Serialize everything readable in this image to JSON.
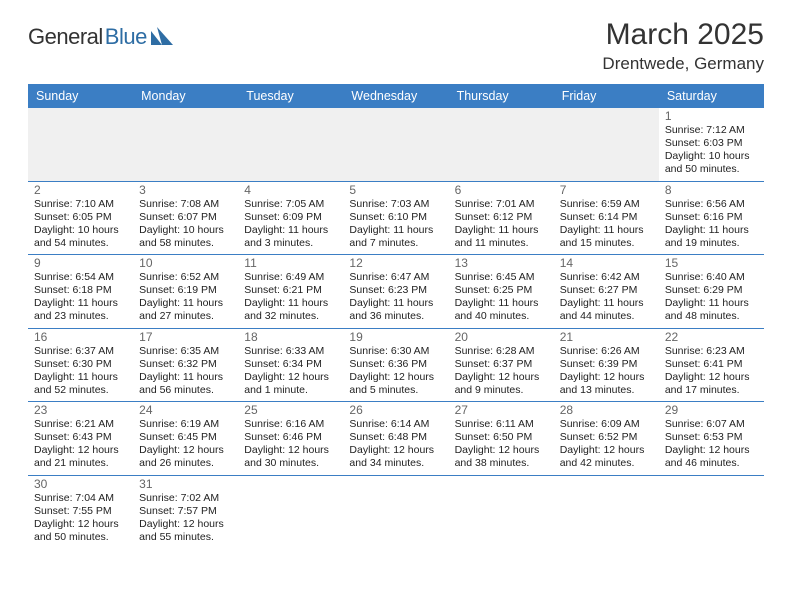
{
  "logo": {
    "part1": "General",
    "part2": "Blue"
  },
  "title": {
    "month": "March 2025",
    "location": "Drentwede, Germany"
  },
  "style": {
    "header_bg": "#3b7ec4",
    "header_fg": "#ffffff",
    "row_divider": "#3b7ec4",
    "light_row_bg": "#f0f0f0",
    "daynum_color": "#666666",
    "text_color": "#222222",
    "logo_blue": "#2e6da4",
    "font_family": "Arial",
    "title_fontsize": 30,
    "location_fontsize": 17,
    "header_fontsize": 12.5,
    "cell_fontsize": 10.5
  },
  "weekdays": [
    "Sunday",
    "Monday",
    "Tuesday",
    "Wednesday",
    "Thursday",
    "Friday",
    "Saturday"
  ],
  "weeks": [
    [
      null,
      null,
      null,
      null,
      null,
      null,
      {
        "d": "1",
        "sunrise": "Sunrise: 7:12 AM",
        "sunset": "Sunset: 6:03 PM",
        "daylight": "Daylight: 10 hours and 50 minutes."
      }
    ],
    [
      {
        "d": "2",
        "sunrise": "Sunrise: 7:10 AM",
        "sunset": "Sunset: 6:05 PM",
        "daylight": "Daylight: 10 hours and 54 minutes."
      },
      {
        "d": "3",
        "sunrise": "Sunrise: 7:08 AM",
        "sunset": "Sunset: 6:07 PM",
        "daylight": "Daylight: 10 hours and 58 minutes."
      },
      {
        "d": "4",
        "sunrise": "Sunrise: 7:05 AM",
        "sunset": "Sunset: 6:09 PM",
        "daylight": "Daylight: 11 hours and 3 minutes."
      },
      {
        "d": "5",
        "sunrise": "Sunrise: 7:03 AM",
        "sunset": "Sunset: 6:10 PM",
        "daylight": "Daylight: 11 hours and 7 minutes."
      },
      {
        "d": "6",
        "sunrise": "Sunrise: 7:01 AM",
        "sunset": "Sunset: 6:12 PM",
        "daylight": "Daylight: 11 hours and 11 minutes."
      },
      {
        "d": "7",
        "sunrise": "Sunrise: 6:59 AM",
        "sunset": "Sunset: 6:14 PM",
        "daylight": "Daylight: 11 hours and 15 minutes."
      },
      {
        "d": "8",
        "sunrise": "Sunrise: 6:56 AM",
        "sunset": "Sunset: 6:16 PM",
        "daylight": "Daylight: 11 hours and 19 minutes."
      }
    ],
    [
      {
        "d": "9",
        "sunrise": "Sunrise: 6:54 AM",
        "sunset": "Sunset: 6:18 PM",
        "daylight": "Daylight: 11 hours and 23 minutes."
      },
      {
        "d": "10",
        "sunrise": "Sunrise: 6:52 AM",
        "sunset": "Sunset: 6:19 PM",
        "daylight": "Daylight: 11 hours and 27 minutes."
      },
      {
        "d": "11",
        "sunrise": "Sunrise: 6:49 AM",
        "sunset": "Sunset: 6:21 PM",
        "daylight": "Daylight: 11 hours and 32 minutes."
      },
      {
        "d": "12",
        "sunrise": "Sunrise: 6:47 AM",
        "sunset": "Sunset: 6:23 PM",
        "daylight": "Daylight: 11 hours and 36 minutes."
      },
      {
        "d": "13",
        "sunrise": "Sunrise: 6:45 AM",
        "sunset": "Sunset: 6:25 PM",
        "daylight": "Daylight: 11 hours and 40 minutes."
      },
      {
        "d": "14",
        "sunrise": "Sunrise: 6:42 AM",
        "sunset": "Sunset: 6:27 PM",
        "daylight": "Daylight: 11 hours and 44 minutes."
      },
      {
        "d": "15",
        "sunrise": "Sunrise: 6:40 AM",
        "sunset": "Sunset: 6:29 PM",
        "daylight": "Daylight: 11 hours and 48 minutes."
      }
    ],
    [
      {
        "d": "16",
        "sunrise": "Sunrise: 6:37 AM",
        "sunset": "Sunset: 6:30 PM",
        "daylight": "Daylight: 11 hours and 52 minutes."
      },
      {
        "d": "17",
        "sunrise": "Sunrise: 6:35 AM",
        "sunset": "Sunset: 6:32 PM",
        "daylight": "Daylight: 11 hours and 56 minutes."
      },
      {
        "d": "18",
        "sunrise": "Sunrise: 6:33 AM",
        "sunset": "Sunset: 6:34 PM",
        "daylight": "Daylight: 12 hours and 1 minute."
      },
      {
        "d": "19",
        "sunrise": "Sunrise: 6:30 AM",
        "sunset": "Sunset: 6:36 PM",
        "daylight": "Daylight: 12 hours and 5 minutes."
      },
      {
        "d": "20",
        "sunrise": "Sunrise: 6:28 AM",
        "sunset": "Sunset: 6:37 PM",
        "daylight": "Daylight: 12 hours and 9 minutes."
      },
      {
        "d": "21",
        "sunrise": "Sunrise: 6:26 AM",
        "sunset": "Sunset: 6:39 PM",
        "daylight": "Daylight: 12 hours and 13 minutes."
      },
      {
        "d": "22",
        "sunrise": "Sunrise: 6:23 AM",
        "sunset": "Sunset: 6:41 PM",
        "daylight": "Daylight: 12 hours and 17 minutes."
      }
    ],
    [
      {
        "d": "23",
        "sunrise": "Sunrise: 6:21 AM",
        "sunset": "Sunset: 6:43 PM",
        "daylight": "Daylight: 12 hours and 21 minutes."
      },
      {
        "d": "24",
        "sunrise": "Sunrise: 6:19 AM",
        "sunset": "Sunset: 6:45 PM",
        "daylight": "Daylight: 12 hours and 26 minutes."
      },
      {
        "d": "25",
        "sunrise": "Sunrise: 6:16 AM",
        "sunset": "Sunset: 6:46 PM",
        "daylight": "Daylight: 12 hours and 30 minutes."
      },
      {
        "d": "26",
        "sunrise": "Sunrise: 6:14 AM",
        "sunset": "Sunset: 6:48 PM",
        "daylight": "Daylight: 12 hours and 34 minutes."
      },
      {
        "d": "27",
        "sunrise": "Sunrise: 6:11 AM",
        "sunset": "Sunset: 6:50 PM",
        "daylight": "Daylight: 12 hours and 38 minutes."
      },
      {
        "d": "28",
        "sunrise": "Sunrise: 6:09 AM",
        "sunset": "Sunset: 6:52 PM",
        "daylight": "Daylight: 12 hours and 42 minutes."
      },
      {
        "d": "29",
        "sunrise": "Sunrise: 6:07 AM",
        "sunset": "Sunset: 6:53 PM",
        "daylight": "Daylight: 12 hours and 46 minutes."
      }
    ],
    [
      {
        "d": "30",
        "sunrise": "Sunrise: 7:04 AM",
        "sunset": "Sunset: 7:55 PM",
        "daylight": "Daylight: 12 hours and 50 minutes."
      },
      {
        "d": "31",
        "sunrise": "Sunrise: 7:02 AM",
        "sunset": "Sunset: 7:57 PM",
        "daylight": "Daylight: 12 hours and 55 minutes."
      },
      null,
      null,
      null,
      null,
      null
    ]
  ]
}
